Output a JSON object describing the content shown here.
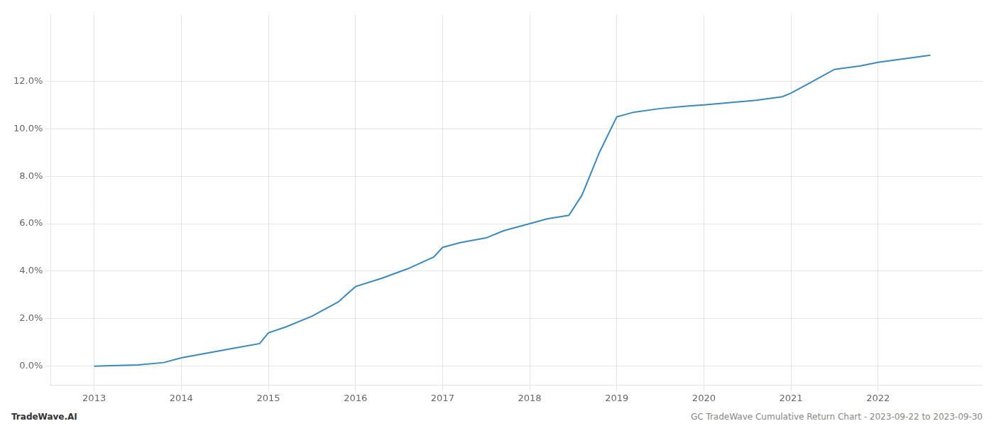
{
  "chart_data": {
    "type": "line",
    "x": [
      2013.0,
      2013.2,
      2013.5,
      2013.8,
      2014.0,
      2014.3,
      2014.6,
      2014.9,
      2015.0,
      2015.2,
      2015.5,
      2015.8,
      2016.0,
      2016.3,
      2016.6,
      2016.9,
      2017.0,
      2017.2,
      2017.5,
      2017.7,
      2018.0,
      2018.2,
      2018.45,
      2018.6,
      2018.8,
      2019.0,
      2019.2,
      2019.5,
      2019.8,
      2020.0,
      2020.3,
      2020.6,
      2020.9,
      2021.0,
      2021.2,
      2021.5,
      2021.8,
      2022.0,
      2022.3,
      2022.6
    ],
    "values": [
      0.0,
      0.02,
      0.05,
      0.15,
      0.35,
      0.55,
      0.75,
      0.95,
      1.4,
      1.65,
      2.1,
      2.7,
      3.35,
      3.7,
      4.1,
      4.6,
      5.0,
      5.2,
      5.4,
      5.7,
      6.0,
      6.2,
      6.35,
      7.2,
      9.0,
      10.5,
      10.7,
      10.85,
      10.95,
      11.0,
      11.1,
      11.2,
      11.35,
      11.5,
      11.9,
      12.5,
      12.65,
      12.8,
      12.95,
      13.1
    ],
    "color": "#3a8abf",
    "xlim": [
      2012.5,
      2023.2
    ],
    "ylim": [
      -0.8,
      14.8
    ],
    "xticks": [
      2013,
      2014,
      2015,
      2016,
      2017,
      2018,
      2019,
      2020,
      2021,
      2022
    ],
    "yticks": [
      {
        "value": 0.0,
        "label": "0.0%"
      },
      {
        "value": 2.0,
        "label": "2.0%"
      },
      {
        "value": 4.0,
        "label": "4.0%"
      },
      {
        "value": 6.0,
        "label": "6.0%"
      },
      {
        "value": 8.0,
        "label": "8.0%"
      },
      {
        "value": 10.0,
        "label": "10.0%"
      },
      {
        "value": 12.0,
        "label": "12.0%"
      }
    ],
    "grid": true,
    "annotations": [
      "TradeWave.AI",
      "GC TradeWave Cumulative Return Chart - 2023-09-22 to 2023-09-30"
    ]
  }
}
